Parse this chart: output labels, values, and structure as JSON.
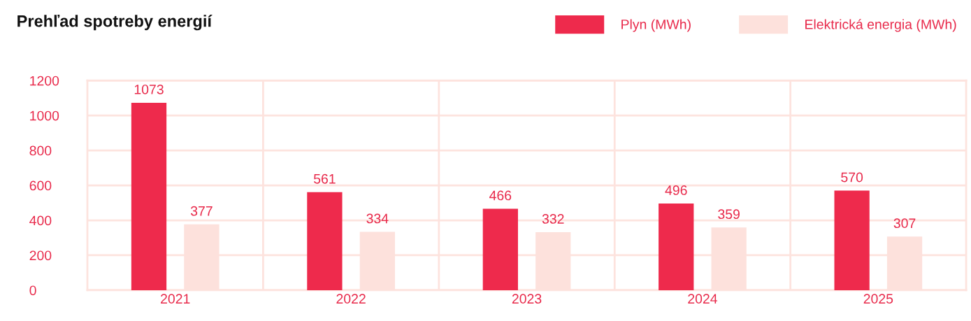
{
  "chart_data": {
    "type": "bar",
    "title": "Prehľad spotreby energií",
    "categories": [
      "2021",
      "2022",
      "2023",
      "2024",
      "2025"
    ],
    "series": [
      {
        "name": "Plyn (MWh)",
        "color": "#ee2a4c",
        "values": [
          1073,
          561,
          466,
          496,
          570
        ]
      },
      {
        "name": "Elektrická energia (MWh)",
        "color": "#fde1dc",
        "values": [
          377,
          334,
          332,
          359,
          307
        ]
      }
    ],
    "ylim": [
      0,
      1200
    ],
    "yticks": [
      0,
      200,
      400,
      600,
      800,
      1000,
      1200
    ],
    "grid": true,
    "legend": "top right",
    "data_labels": true
  }
}
